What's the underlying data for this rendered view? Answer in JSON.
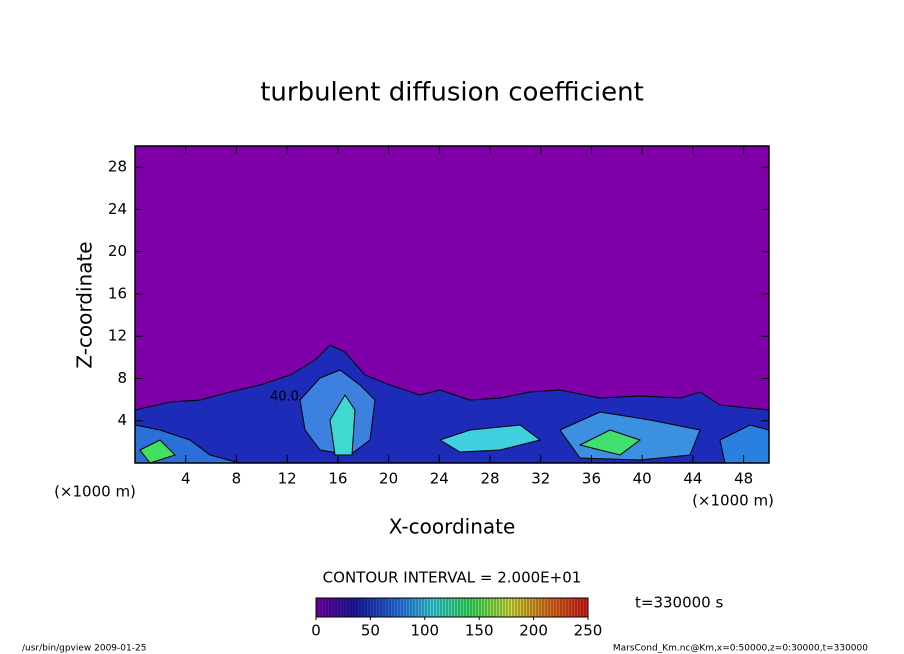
{
  "chart_data": {
    "type": "contour",
    "title": "turbulent diffusion coefficient",
    "x_label": "X-coordinate",
    "y_label": "Z-coordinate",
    "x_unit": "(×1000 m)",
    "y_unit": "(×1000 m)",
    "xlim": [
      0,
      50
    ],
    "xticks": [
      4,
      8,
      12,
      16,
      20,
      24,
      28,
      32,
      36,
      40,
      44,
      48
    ],
    "ylim": [
      0,
      30
    ],
    "yticks": [
      4,
      8,
      12,
      16,
      20,
      24,
      28
    ],
    "contour_interval": "CONTOUR INTERVAL = 2.000E+01",
    "contour_label": "40.0",
    "time_label": "t=330000 s",
    "colorbar": {
      "clim": [
        0,
        250
      ],
      "ticks": [
        0,
        50,
        100,
        150,
        200,
        250
      ],
      "colors": [
        "#7a00a8",
        "#1a1aa0",
        "#2a6ae0",
        "#40d0e0",
        "#40e060",
        "#d0e040",
        "#e07020",
        "#d02020"
      ]
    }
  },
  "footer": {
    "left": "/usr/bin/gpview  2009-01-25",
    "right": "MarsCond_Km.nc@Km,x=0:50000,z=0:30000,t=330000"
  }
}
